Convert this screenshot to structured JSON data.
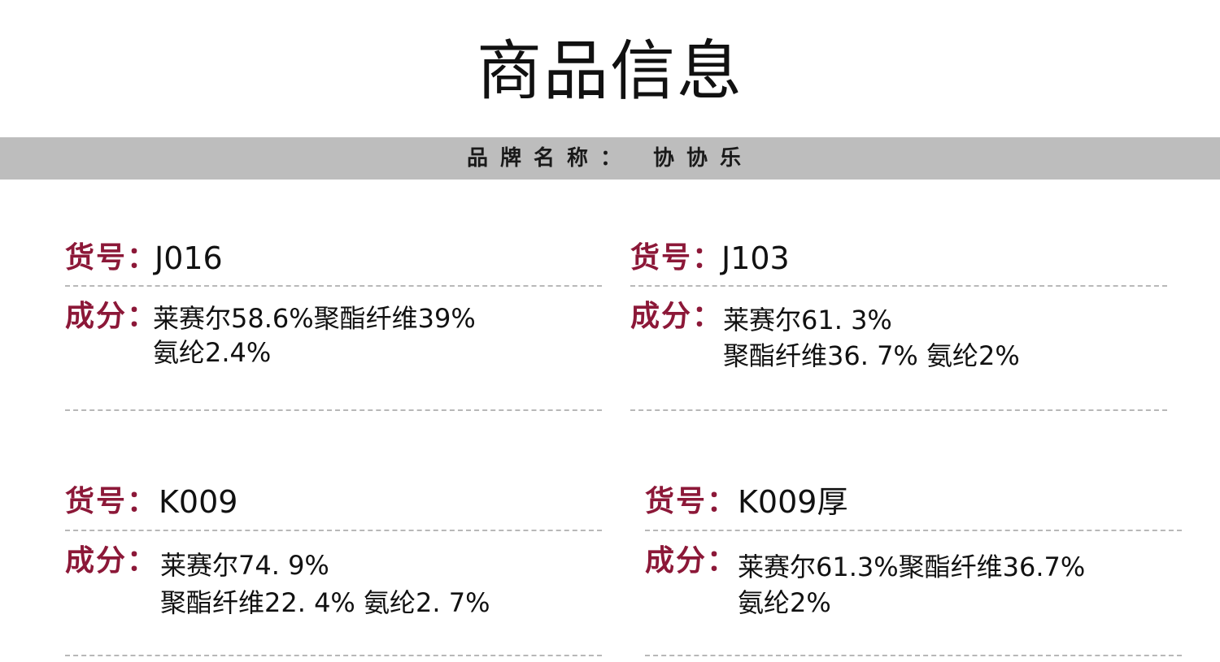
{
  "page": {
    "title": "商品信息",
    "brand_label": "品牌名称：",
    "brand_value": "协协乐"
  },
  "items": [
    {
      "code_label": "货号：",
      "code": "J016",
      "composition_label": "成分：",
      "composition_line1": "莱赛尔58.6%聚酯纤维39%",
      "composition_line2": "氨纶2.4%"
    },
    {
      "code_label": "货号：",
      "code": "J103",
      "composition_label": "成分：",
      "composition_line1": "莱赛尔61. 3%",
      "composition_line2": "聚酯纤维36. 7%  氨纶2%"
    },
    {
      "code_label": "货号：",
      "code": "K009",
      "composition_label": "成分：",
      "composition_line1": "莱赛尔74. 9%",
      "composition_line2": "聚酯纤维22. 4%  氨纶2. 7%"
    },
    {
      "code_label": "货号：",
      "code": "K009厚",
      "composition_label": "成分：",
      "composition_line1": "莱赛尔61.3%聚酯纤维36.7%",
      "composition_line2": "氨纶2%"
    }
  ]
}
